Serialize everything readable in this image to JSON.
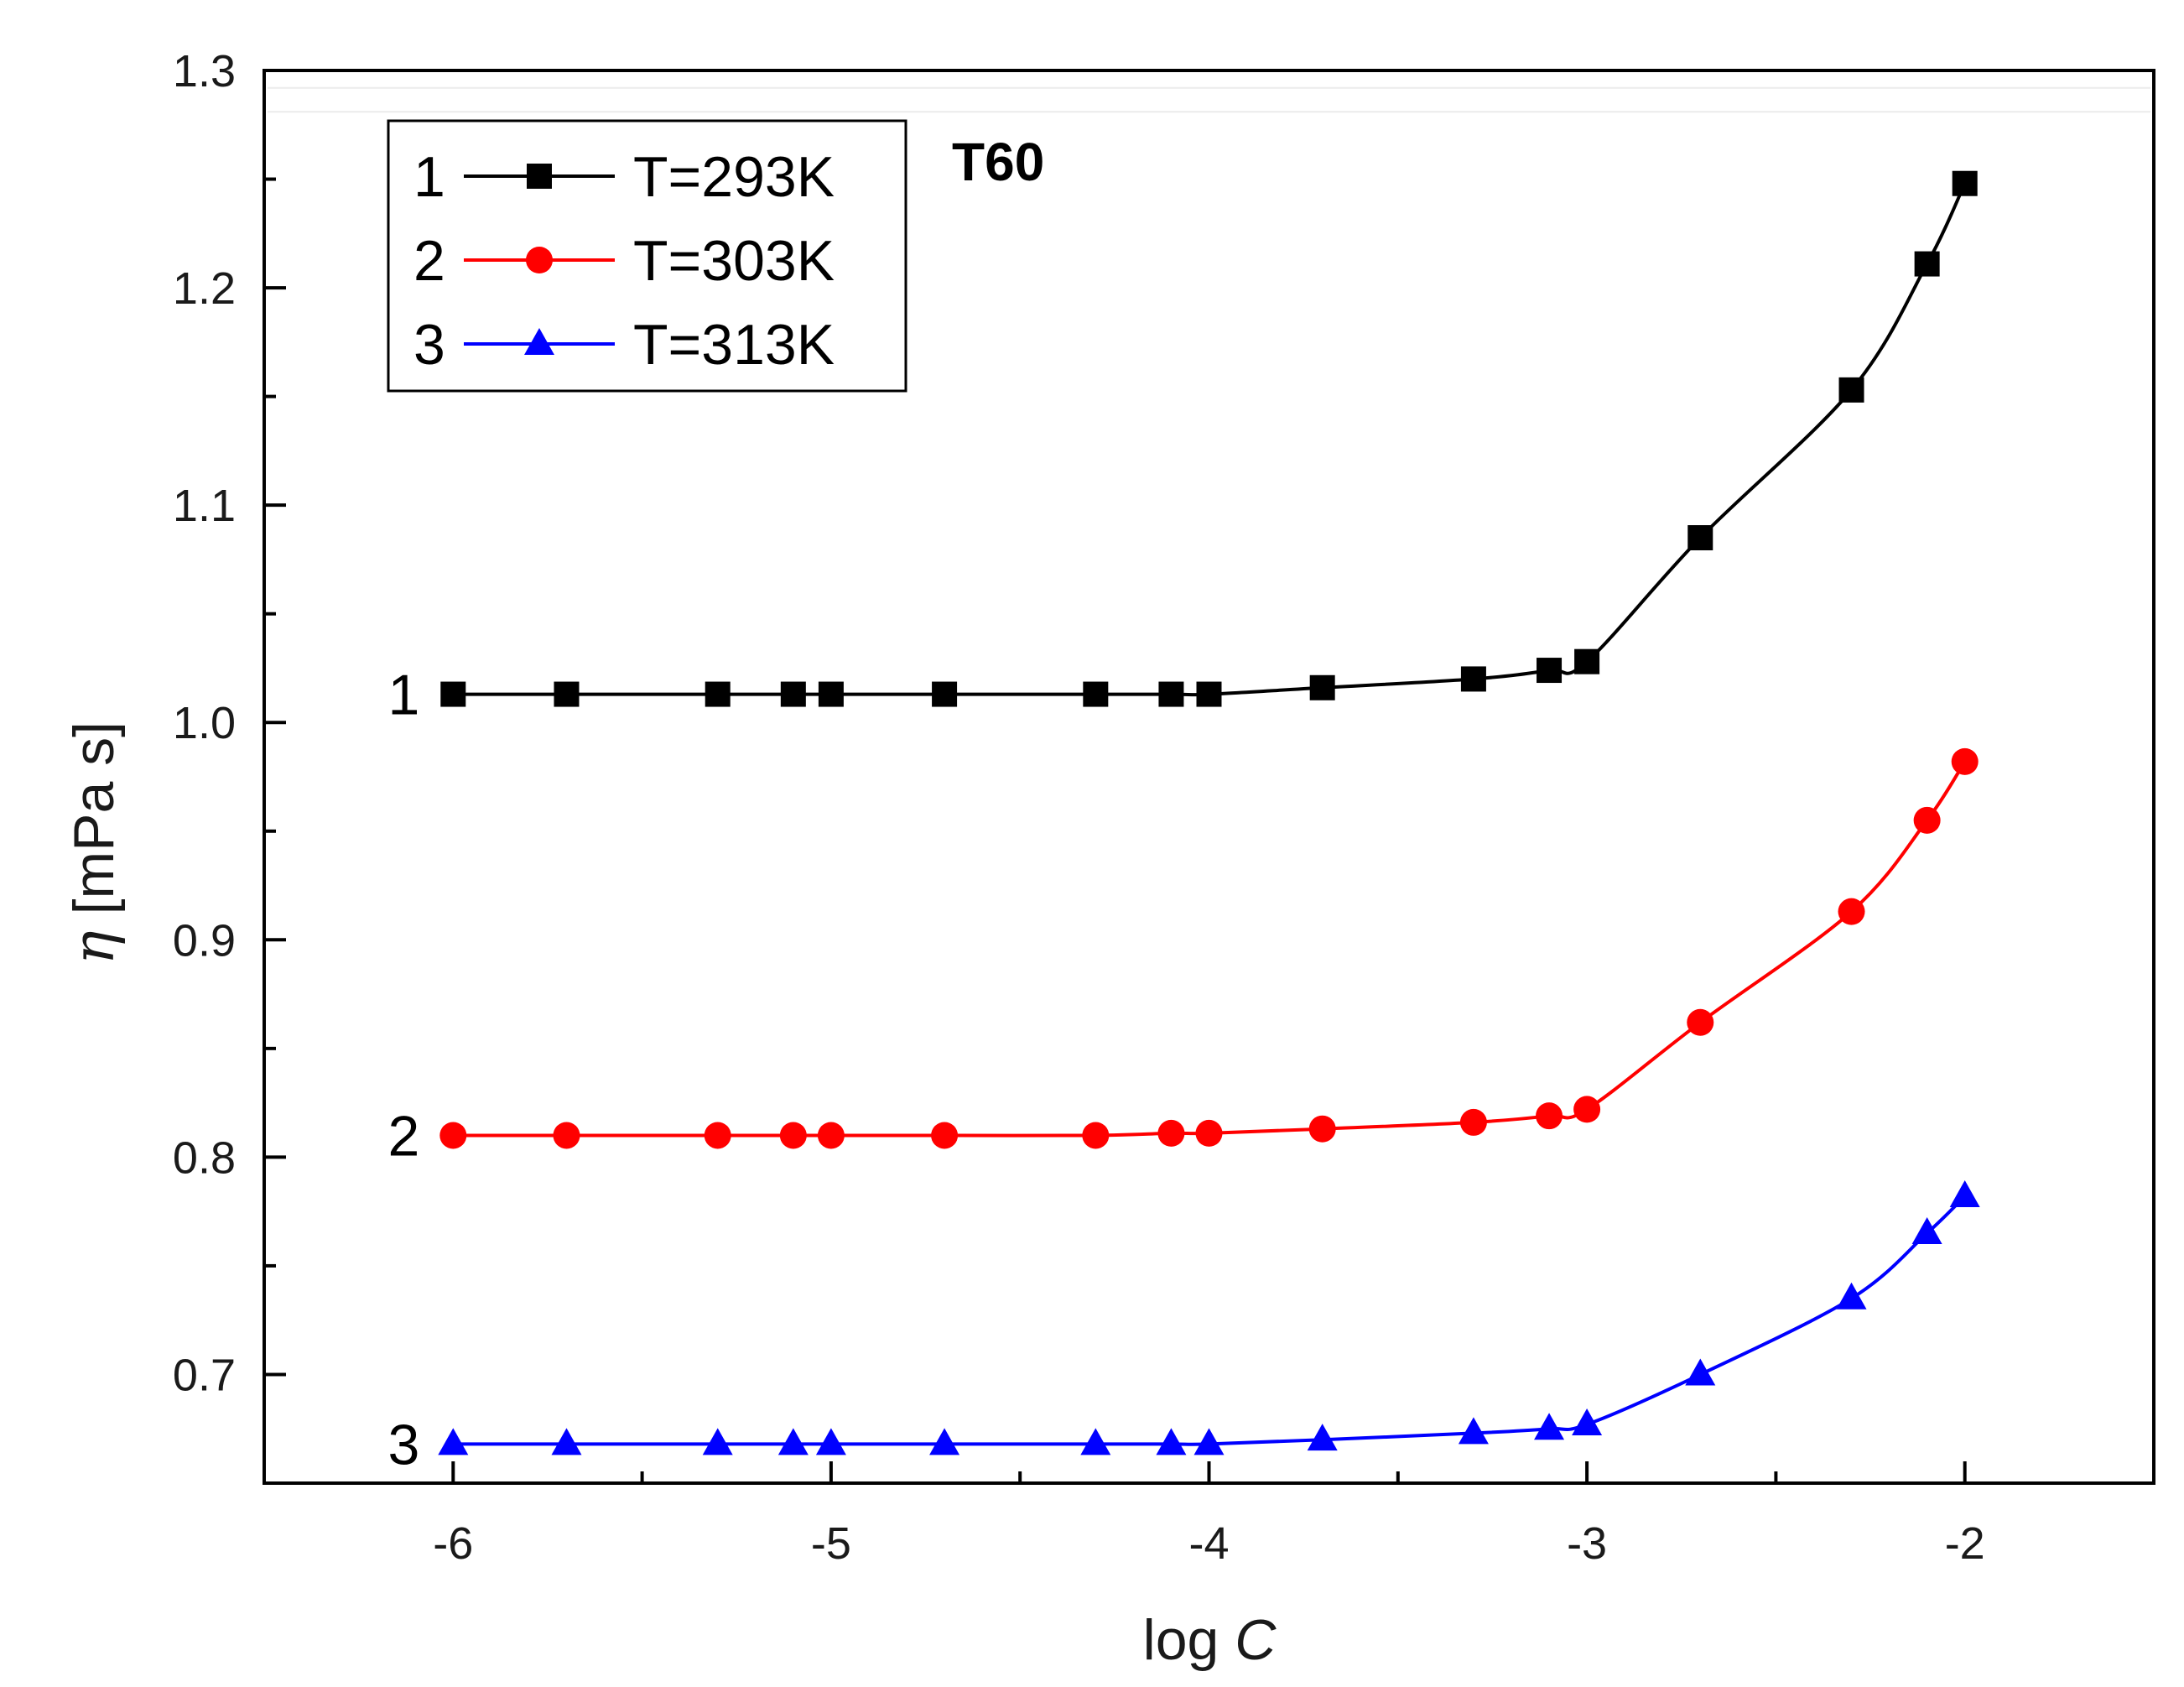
{
  "chart_data": {
    "type": "line",
    "annotation": "T60",
    "xlabel": {
      "prefix": "log ",
      "italic": "C"
    },
    "ylabel": {
      "symbol": "η",
      "unit": " [mPa s]"
    },
    "xlim": [
      -6.5,
      -1.5
    ],
    "ylim": [
      0.65,
      1.3
    ],
    "xticks": [
      -6,
      -5,
      -4,
      -3,
      -2
    ],
    "xtick_labels": [
      "-6",
      "-5",
      "-4",
      "-3",
      "-2"
    ],
    "yticks": [
      0.7,
      0.8,
      0.9,
      1.0,
      1.1,
      1.2,
      1.3
    ],
    "ytick_labels": [
      "0.7",
      "0.8",
      "0.9",
      "1.0",
      "1.1",
      "1.2",
      "1.3"
    ],
    "legend_position": "top-left",
    "series": [
      {
        "id": "1",
        "name": "T=293K",
        "color": "#000000",
        "marker": "square",
        "x": [
          -6,
          -5.7,
          -5.3,
          -5.1,
          -5,
          -4.7,
          -4.3,
          -4.1,
          -4,
          -3.7,
          -3.3,
          -3.1,
          -3,
          -2.7,
          -2.3,
          -2.1,
          -2
        ],
        "y": [
          1.013,
          1.013,
          1.013,
          1.013,
          1.013,
          1.013,
          1.013,
          1.013,
          1.013,
          1.016,
          1.02,
          1.024,
          1.028,
          1.085,
          1.153,
          1.211,
          1.248
        ]
      },
      {
        "id": "2",
        "name": "T=303K",
        "color": "#ff0000",
        "marker": "circle",
        "x": [
          -6,
          -5.7,
          -5.3,
          -5.1,
          -5,
          -4.7,
          -4.3,
          -4.1,
          -4,
          -3.7,
          -3.3,
          -3.1,
          -3,
          -2.7,
          -2.3,
          -2.1,
          -2
        ],
        "y": [
          0.81,
          0.81,
          0.81,
          0.81,
          0.81,
          0.81,
          0.81,
          0.811,
          0.811,
          0.813,
          0.816,
          0.819,
          0.822,
          0.862,
          0.913,
          0.955,
          0.982
        ]
      },
      {
        "id": "3",
        "name": "T=313K",
        "color": "#0000ff",
        "marker": "triangle",
        "x": [
          -6,
          -5.7,
          -5.3,
          -5.1,
          -5,
          -4.7,
          -4.3,
          -4.1,
          -4,
          -3.7,
          -3.3,
          -3.1,
          -3,
          -2.7,
          -2.3,
          -2.1,
          -2
        ],
        "y": [
          0.668,
          0.668,
          0.668,
          0.668,
          0.668,
          0.668,
          0.668,
          0.668,
          0.668,
          0.67,
          0.673,
          0.675,
          0.677,
          0.7,
          0.735,
          0.765,
          0.782
        ]
      }
    ]
  }
}
